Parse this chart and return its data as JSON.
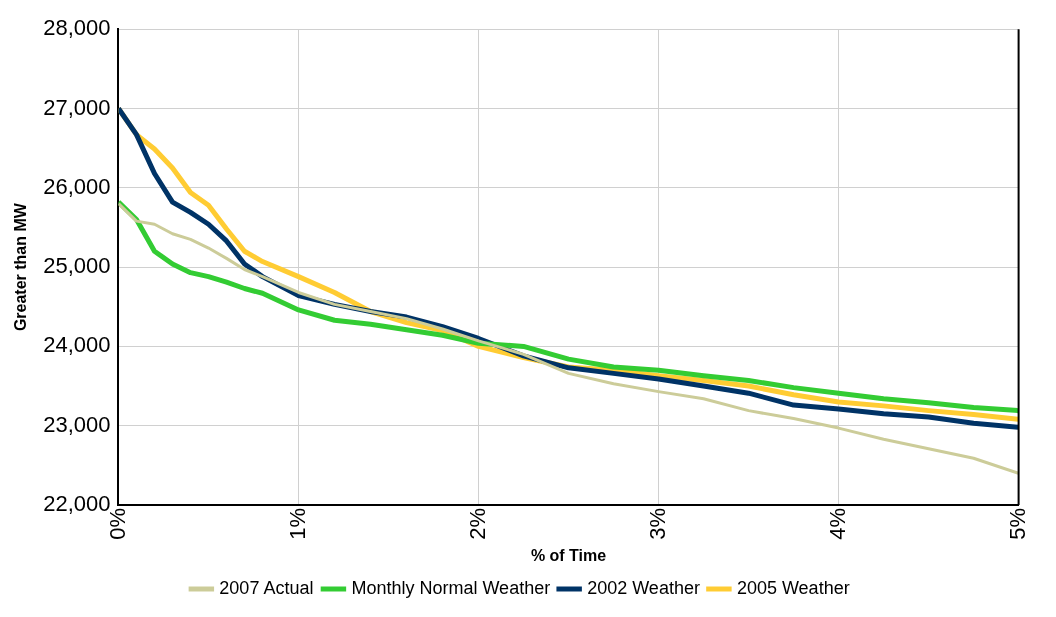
{
  "chart_data": {
    "type": "line",
    "xlabel": "% of Time",
    "ylabel": "Greater than MW",
    "x": [
      0,
      0.1,
      0.2,
      0.3,
      0.4,
      0.5,
      0.6,
      0.7,
      0.8,
      1,
      1.2,
      1.4,
      1.6,
      1.8,
      2,
      2.25,
      2.5,
      2.75,
      3,
      3.25,
      3.5,
      3.75,
      4,
      4.25,
      4.5,
      4.75,
      5
    ],
    "series": [
      {
        "name": "2007 Actual",
        "color": "#cccc99",
        "values": [
          25800,
          25580,
          25540,
          25420,
          25350,
          25240,
          25110,
          24970,
          24880,
          24680,
          24530,
          24440,
          24350,
          24220,
          24070,
          23900,
          23660,
          23530,
          23430,
          23340,
          23190,
          23090,
          22970,
          22830,
          22710,
          22590,
          22400
        ]
      },
      {
        "name": "Monthly Normal Weather",
        "color": "#33cc33",
        "values": [
          25820,
          25600,
          25200,
          25040,
          24930,
          24880,
          24810,
          24730,
          24670,
          24460,
          24330,
          24280,
          24210,
          24140,
          24040,
          24000,
          23840,
          23740,
          23700,
          23630,
          23570,
          23480,
          23410,
          23340,
          23290,
          23230,
          23190
        ]
      },
      {
        "name": "2002 Weather",
        "color": "#003366",
        "values": [
          27000,
          26670,
          26180,
          25820,
          25690,
          25540,
          25330,
          25040,
          24880,
          24640,
          24530,
          24440,
          24370,
          24250,
          24100,
          23880,
          23730,
          23660,
          23590,
          23500,
          23410,
          23260,
          23210,
          23150,
          23110,
          23030,
          22980
        ]
      },
      {
        "name": "2005 Weather",
        "color": "#ffcc33",
        "values": [
          27000,
          26670,
          26490,
          26250,
          25940,
          25780,
          25480,
          25200,
          25070,
          24880,
          24680,
          24440,
          24300,
          24200,
          24000,
          23860,
          23740,
          23700,
          23630,
          23570,
          23500,
          23390,
          23300,
          23250,
          23190,
          23140,
          23080
        ]
      }
    ],
    "xlim": [
      0,
      5
    ],
    "xticks": [
      {
        "value": 0,
        "label": "0%"
      },
      {
        "value": 1,
        "label": "1%"
      },
      {
        "value": 2,
        "label": "2%"
      },
      {
        "value": 3,
        "label": "3%"
      },
      {
        "value": 4,
        "label": "4%"
      },
      {
        "value": 5,
        "label": "5%"
      }
    ],
    "ylim": [
      22000,
      28000
    ],
    "yticks": [
      {
        "value": 22000,
        "label": "22,000"
      },
      {
        "value": 23000,
        "label": "23,000"
      },
      {
        "value": 24000,
        "label": "24,000"
      },
      {
        "value": 25000,
        "label": "25,000"
      },
      {
        "value": 26000,
        "label": "26,000"
      },
      {
        "value": 27000,
        "label": "27,000"
      },
      {
        "value": 28000,
        "label": "28,000"
      }
    ],
    "grid": true,
    "legend": "bottom",
    "marker": "none",
    "line_style": "solid"
  }
}
